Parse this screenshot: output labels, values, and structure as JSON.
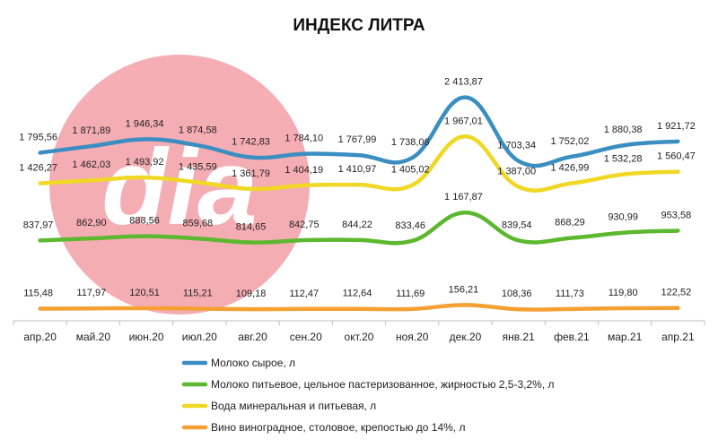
{
  "chart_data": {
    "type": "line",
    "title": "ИНДЕКС ЛИТРА",
    "categories": [
      "апр.20",
      "май.20",
      "июн.20",
      "июл.20",
      "авг.20",
      "сен.20",
      "окт.20",
      "ноя.20",
      "дек.20",
      "янв.21",
      "фев.21",
      "мар.21",
      "апр.21"
    ],
    "series": [
      {
        "name": "Молоко сырое, л",
        "color": "#3b8ec2",
        "values": [
          1795.56,
          1871.89,
          1946.34,
          1874.58,
          1742.83,
          1784.1,
          1767.99,
          1738.06,
          2413.87,
          1703.34,
          1752.02,
          1880.38,
          1921.72
        ],
        "labels": [
          "1 795,56",
          "1 871,89",
          "1 946,34",
          "1 874,58",
          "1 742,83",
          "1 784,10",
          "1 767,99",
          "1 738,06",
          "2 413,87",
          "1 703,34",
          "1 752,02",
          "1 880,38",
          "1 921,72"
        ]
      },
      {
        "name": "Молоко питьевое, цельное пастеризованное, жирностью 2,5-3,2%, л",
        "color": "#5cb82e",
        "values": [
          837.97,
          862.9,
          888.56,
          859.68,
          814.65,
          842.75,
          844.22,
          833.46,
          1167.87,
          839.54,
          868.29,
          930.99,
          953.58
        ],
        "labels": [
          "837,97",
          "862,90",
          "888,56",
          "859,68",
          "814,65",
          "842,75",
          "844,22",
          "833,46",
          "1 167,87",
          "839,54",
          "868,29",
          "930,99",
          "953,58"
        ]
      },
      {
        "name": "Вода минеральная и питьевая, л",
        "color": "#f0d824",
        "values": [
          1426.27,
          1462.03,
          1493.92,
          1435.59,
          1361.79,
          1404.19,
          1410.97,
          1405.02,
          1967.01,
          1387.0,
          1426.99,
          1532.28,
          1560.47
        ],
        "labels": [
          "1 426,27",
          "1 462,03",
          "1 493,92",
          "1 435,59",
          "1 361,79",
          "1 404,19",
          "1 410,97",
          "1 405,02",
          "1 967,01",
          "1 387,00",
          "1 426,99",
          "1 532,28",
          "1 560,47"
        ]
      },
      {
        "name": "Вино виноградное, столовое, крепостью до 14%, л",
        "color": "#f5a033",
        "values": [
          115.48,
          117.97,
          120.51,
          115.21,
          109.18,
          112.47,
          112.64,
          111.69,
          156.21,
          108.36,
          111.73,
          119.8,
          122.52
        ],
        "labels": [
          "115,48",
          "117,97",
          "120,51",
          "115,21",
          "109,18",
          "112,47",
          "112,64",
          "111,69",
          "156,21",
          "108,36",
          "111,73",
          "119,80",
          "122,52"
        ]
      }
    ],
    "grid": false,
    "legend_position": "bottom",
    "watermark_text": "dia"
  }
}
